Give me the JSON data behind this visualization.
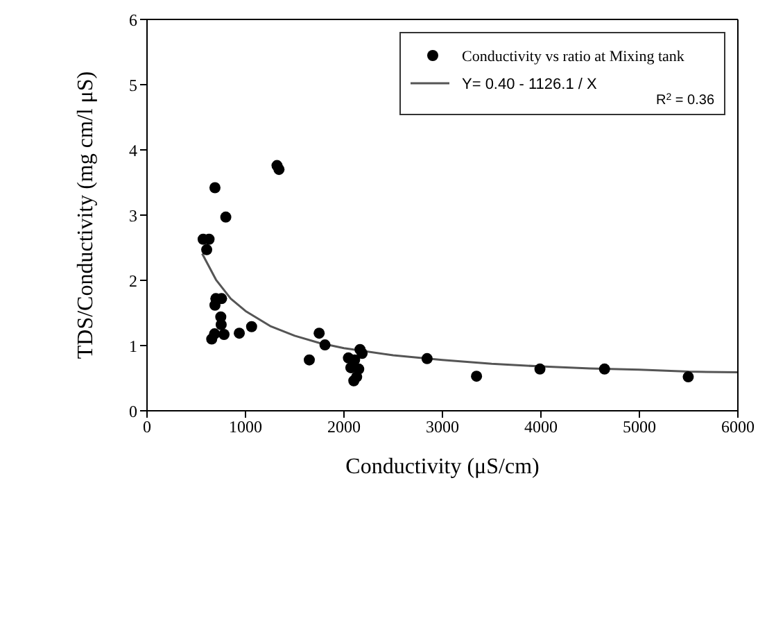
{
  "chart_data": {
    "type": "scatter",
    "xlabel": "Conductivity (μS/cm)",
    "ylabel": "TDS/Conductivity (mg cm/l μS)",
    "xlim": [
      0,
      6000
    ],
    "ylim": [
      0,
      6
    ],
    "xticks": [
      0,
      1000,
      2000,
      3000,
      4000,
      5000,
      6000
    ],
    "yticks": [
      0,
      1,
      2,
      3,
      4,
      5,
      6
    ],
    "legend": "top right",
    "annotations": [
      "R$^{2}$ = 0.36"
    ],
    "series": [
      {
        "name": "Conductivity vs ratio at Mixing tank",
        "color": "#000000",
        "marker": "circle",
        "x": [
          1320,
          1340,
          690,
          800,
          570,
          630,
          606,
          699,
          757,
          690,
          749,
          753,
          657,
          686,
          782,
          937,
          1062,
          1648,
          1748,
          1807,
          2045,
          2108,
          2070,
          2150,
          2129,
          2100,
          2163,
          2184,
          2844,
          3346,
          3990,
          4646,
          5496
        ],
        "values": [
          3.76,
          3.7,
          3.42,
          2.97,
          2.63,
          2.63,
          2.47,
          1.72,
          1.72,
          1.62,
          1.44,
          1.32,
          1.1,
          1.18,
          1.17,
          1.19,
          1.29,
          0.78,
          1.19,
          1.01,
          0.81,
          0.78,
          0.66,
          0.64,
          0.52,
          0.46,
          0.94,
          0.88,
          0.8,
          0.53,
          0.64,
          0.64,
          0.52
        ]
      },
      {
        "name": "Y= 0.40 - 1126.1 / X",
        "type": "line",
        "color": "#555555",
        "marker": "none",
        "line_style": "solid",
        "x": [
          560,
          700,
          850,
          1000,
          1250,
          1500,
          1750,
          2000,
          2500,
          3000,
          3500,
          4000,
          4500,
          5000,
          5500,
          6000
        ],
        "values": [
          2.41,
          2.01,
          1.72,
          1.53,
          1.3,
          1.15,
          1.04,
          0.96,
          0.85,
          0.78,
          0.72,
          0.68,
          0.65,
          0.63,
          0.6,
          0.59
        ]
      }
    ]
  }
}
